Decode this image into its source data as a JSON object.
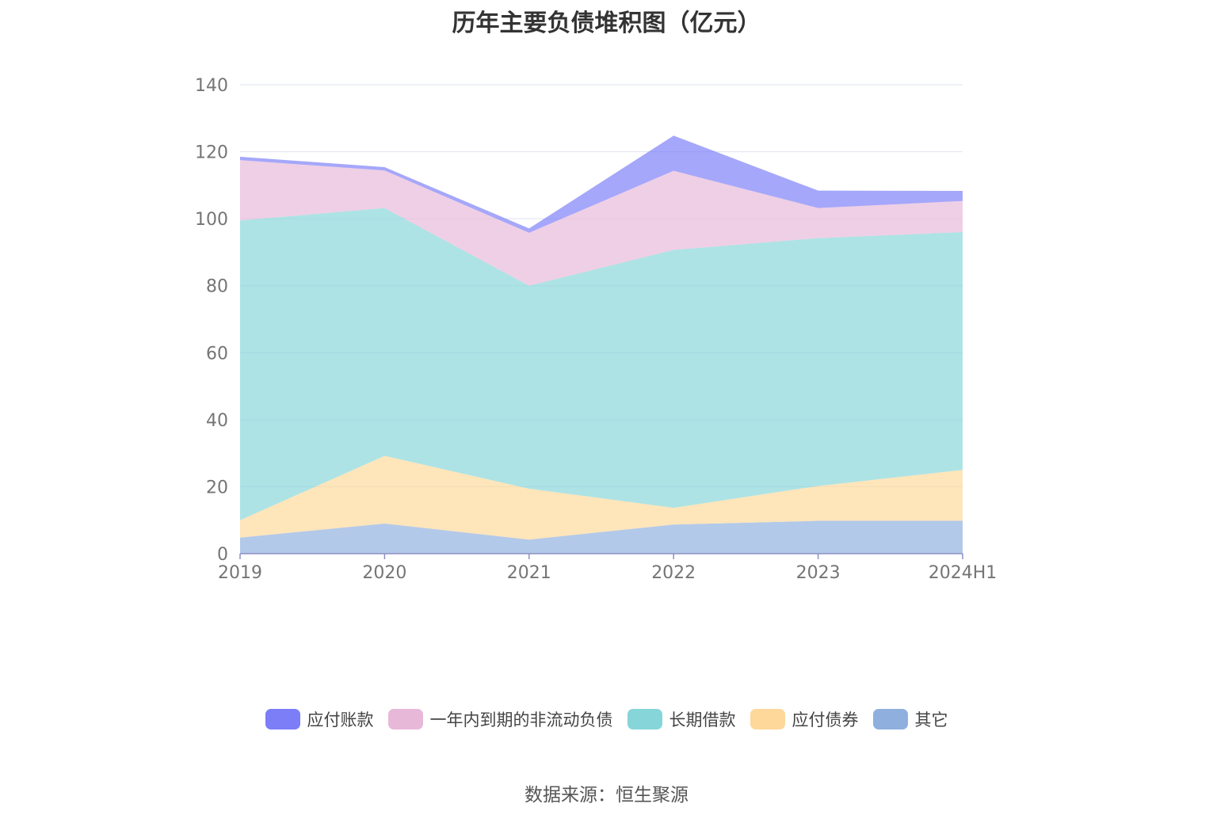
{
  "title": "历年主要负债堆积图（亿元）",
  "source": "数据来源：恒生聚源",
  "chart_data": {
    "type": "area",
    "stacked": true,
    "categories": [
      "2019",
      "2020",
      "2021",
      "2022",
      "2023",
      "2024H1"
    ],
    "ylim": [
      0,
      140
    ],
    "yticks": [
      0,
      20,
      40,
      60,
      80,
      100,
      120,
      140
    ],
    "grid": true,
    "legend_position": "bottom",
    "series": [
      {
        "name": "其它",
        "color": "#8fb0de",
        "values": [
          4.8,
          9.0,
          4.2,
          8.7,
          9.8,
          9.8
        ]
      },
      {
        "name": "应付债券",
        "color": "#fdd89a",
        "values": [
          5.2,
          20.2,
          15.2,
          5.0,
          10.4,
          15.2
        ]
      },
      {
        "name": "长期借款",
        "color": "#86d5d8",
        "values": [
          89.5,
          74.0,
          60.6,
          77.0,
          74.0,
          71.0
        ]
      },
      {
        "name": "一年内到期的非流动负债",
        "color": "#e8b8d8",
        "values": [
          18.0,
          11.2,
          15.8,
          23.6,
          9.0,
          9.3
        ]
      },
      {
        "name": "应付账款",
        "color": "#7b7ef7",
        "values": [
          1.0,
          1.0,
          1.3,
          10.5,
          5.2,
          3.0
        ]
      }
    ],
    "legend_order": [
      "应付账款",
      "一年内到期的非流动负债",
      "长期借款",
      "应付债券",
      "其它"
    ]
  }
}
